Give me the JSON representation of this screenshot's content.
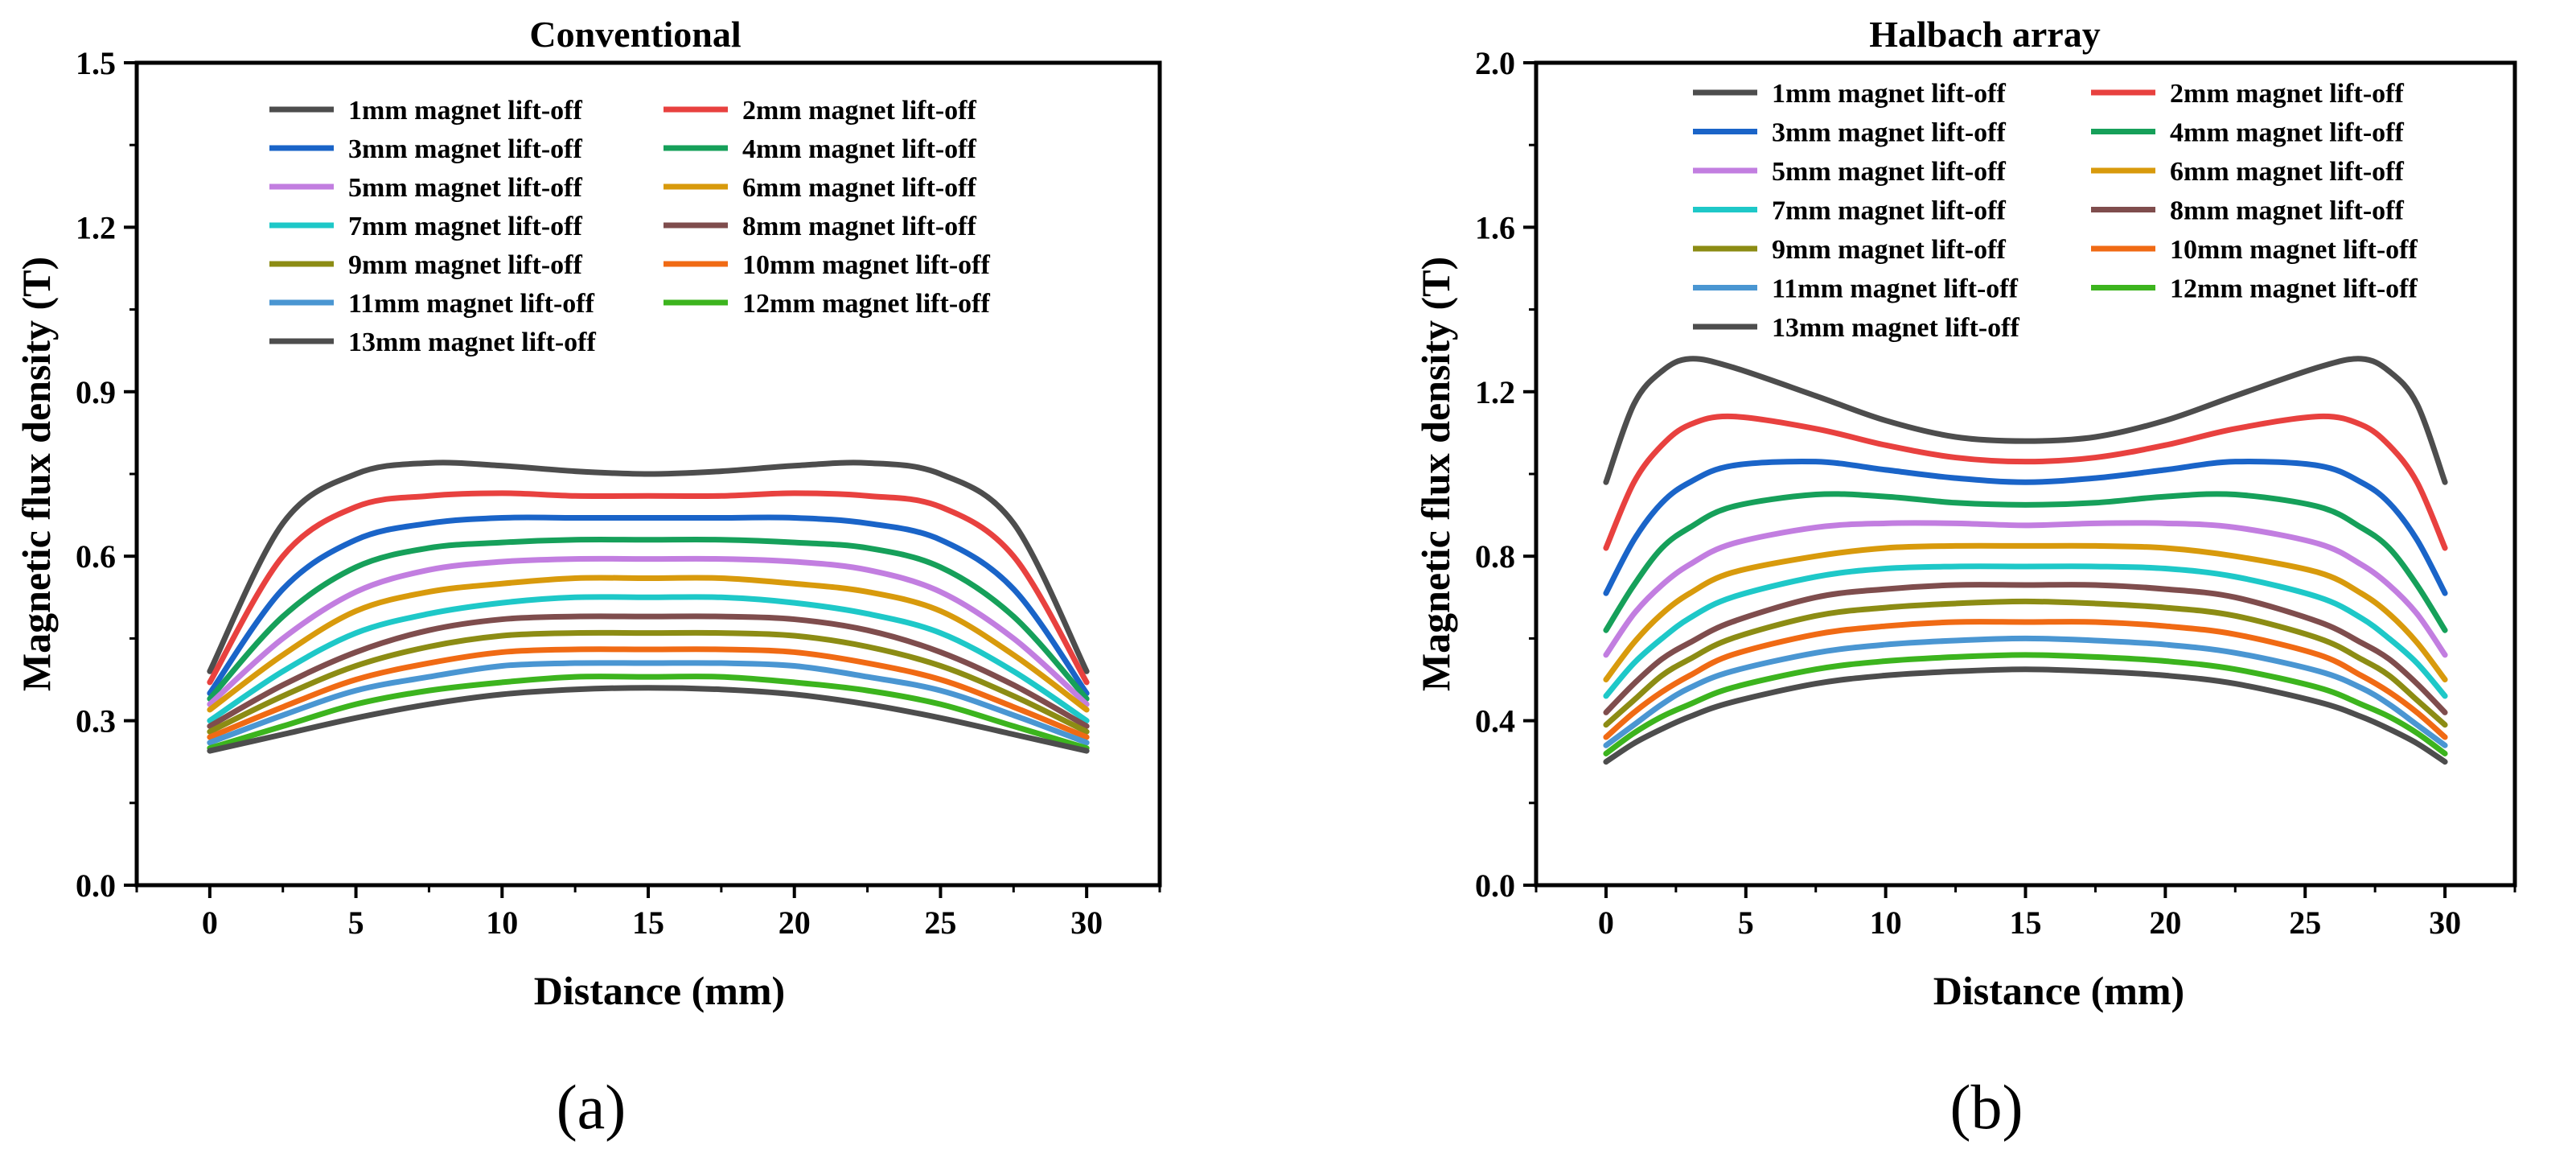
{
  "chart_data": [
    {
      "type": "line",
      "panel_label": "(a)",
      "title": "Conventional",
      "xlabel": "Distance (mm)",
      "ylabel": "Magnetic flux density (T)",
      "xlim": [
        -2.5,
        32.5
      ],
      "ylim": [
        0,
        1.5
      ],
      "xticks": [
        0,
        5,
        10,
        15,
        20,
        25,
        30
      ],
      "yticks": [
        0.0,
        0.3,
        0.6,
        0.9,
        1.2,
        1.5
      ],
      "ytick_labels": [
        "0.0",
        "0.3",
        "0.6",
        "0.9",
        "1.2",
        "1.5"
      ],
      "legend_position": "top",
      "x": [
        0,
        2.5,
        5,
        7.5,
        10,
        12.5,
        15,
        17.5,
        20,
        22.5,
        25,
        27.5,
        30
      ],
      "series": [
        {
          "name": "1mm magnet lift-off",
          "color": "#4d4d4d",
          "values": [
            0.39,
            0.66,
            0.75,
            0.77,
            0.765,
            0.755,
            0.75,
            0.755,
            0.765,
            0.77,
            0.75,
            0.66,
            0.39
          ]
        },
        {
          "name": "2mm magnet lift-off",
          "color": "#e8413f",
          "values": [
            0.37,
            0.6,
            0.69,
            0.71,
            0.715,
            0.71,
            0.71,
            0.71,
            0.715,
            0.71,
            0.69,
            0.6,
            0.37
          ]
        },
        {
          "name": "3mm magnet lift-off",
          "color": "#1a64c8",
          "values": [
            0.35,
            0.54,
            0.63,
            0.66,
            0.67,
            0.67,
            0.67,
            0.67,
            0.67,
            0.66,
            0.63,
            0.54,
            0.35
          ]
        },
        {
          "name": "4mm magnet lift-off",
          "color": "#16a05a",
          "values": [
            0.34,
            0.49,
            0.58,
            0.615,
            0.625,
            0.63,
            0.63,
            0.63,
            0.625,
            0.615,
            0.58,
            0.49,
            0.34
          ]
        },
        {
          "name": "5mm magnet lift-off",
          "color": "#c27ee0",
          "values": [
            0.33,
            0.45,
            0.535,
            0.575,
            0.59,
            0.595,
            0.595,
            0.595,
            0.59,
            0.575,
            0.535,
            0.45,
            0.33
          ]
        },
        {
          "name": "6mm magnet lift-off",
          "color": "#d89a0c",
          "values": [
            0.32,
            0.42,
            0.5,
            0.535,
            0.55,
            0.56,
            0.56,
            0.56,
            0.55,
            0.535,
            0.5,
            0.42,
            0.32
          ]
        },
        {
          "name": "7mm magnet lift-off",
          "color": "#1ec8c8",
          "values": [
            0.3,
            0.39,
            0.46,
            0.495,
            0.515,
            0.525,
            0.525,
            0.525,
            0.515,
            0.495,
            0.46,
            0.39,
            0.3
          ]
        },
        {
          "name": "8mm magnet lift-off",
          "color": "#7f4d4d",
          "values": [
            0.29,
            0.365,
            0.425,
            0.465,
            0.485,
            0.49,
            0.49,
            0.49,
            0.485,
            0.465,
            0.425,
            0.365,
            0.29
          ]
        },
        {
          "name": "9mm magnet lift-off",
          "color": "#8c8c14",
          "values": [
            0.28,
            0.345,
            0.4,
            0.435,
            0.455,
            0.46,
            0.46,
            0.46,
            0.455,
            0.435,
            0.4,
            0.345,
            0.28
          ]
        },
        {
          "name": "10mm magnet lift-off",
          "color": "#f06a14",
          "values": [
            0.27,
            0.325,
            0.375,
            0.405,
            0.425,
            0.43,
            0.43,
            0.43,
            0.425,
            0.405,
            0.375,
            0.325,
            0.27
          ]
        },
        {
          "name": "11mm magnet lift-off",
          "color": "#4a96d2",
          "values": [
            0.26,
            0.31,
            0.355,
            0.38,
            0.4,
            0.405,
            0.405,
            0.405,
            0.4,
            0.38,
            0.355,
            0.31,
            0.26
          ]
        },
        {
          "name": "12mm magnet lift-off",
          "color": "#3cb41e",
          "values": [
            0.25,
            0.29,
            0.33,
            0.355,
            0.37,
            0.38,
            0.38,
            0.38,
            0.37,
            0.355,
            0.33,
            0.29,
            0.25
          ]
        },
        {
          "name": "13mm magnet lift-off",
          "color": "#4d4d4d",
          "values": [
            0.245,
            0.275,
            0.305,
            0.33,
            0.348,
            0.357,
            0.36,
            0.357,
            0.348,
            0.33,
            0.305,
            0.275,
            0.245
          ]
        }
      ]
    },
    {
      "type": "line",
      "panel_label": "(b)",
      "title": "Halbach array",
      "xlabel": "Distance (mm)",
      "ylabel": "Magnetic flux density (T)",
      "xlim": [
        -2.5,
        32.5
      ],
      "ylim": [
        0,
        2.0
      ],
      "xticks": [
        0,
        5,
        10,
        15,
        20,
        25,
        30
      ],
      "yticks": [
        0.0,
        0.4,
        0.8,
        1.2,
        1.6,
        2.0
      ],
      "ytick_labels": [
        "0.0",
        "0.4",
        "0.8",
        "1.2",
        "1.6",
        "2.0"
      ],
      "legend_position": "top",
      "x": [
        0,
        1,
        2,
        3,
        4.5,
        7.5,
        10,
        12.5,
        15,
        17.5,
        20,
        22.5,
        25.5,
        27,
        28,
        29,
        30
      ],
      "series": [
        {
          "name": "1mm magnet lift-off",
          "color": "#4d4d4d",
          "values": [
            0.98,
            1.17,
            1.25,
            1.28,
            1.26,
            1.19,
            1.13,
            1.09,
            1.08,
            1.09,
            1.13,
            1.19,
            1.26,
            1.28,
            1.25,
            1.17,
            0.98
          ]
        },
        {
          "name": "2mm magnet lift-off",
          "color": "#e8413f",
          "values": [
            0.82,
            0.98,
            1.07,
            1.12,
            1.14,
            1.11,
            1.07,
            1.04,
            1.03,
            1.04,
            1.07,
            1.11,
            1.14,
            1.12,
            1.07,
            0.98,
            0.82
          ]
        },
        {
          "name": "3mm magnet lift-off",
          "color": "#1a64c8",
          "values": [
            0.71,
            0.84,
            0.93,
            0.98,
            1.02,
            1.03,
            1.01,
            0.99,
            0.98,
            0.99,
            1.01,
            1.03,
            1.02,
            0.98,
            0.93,
            0.84,
            0.71
          ]
        },
        {
          "name": "4mm magnet lift-off",
          "color": "#16a05a",
          "values": [
            0.62,
            0.73,
            0.82,
            0.87,
            0.92,
            0.95,
            0.945,
            0.93,
            0.925,
            0.93,
            0.945,
            0.95,
            0.92,
            0.87,
            0.82,
            0.73,
            0.62
          ]
        },
        {
          "name": "5mm magnet lift-off",
          "color": "#c27ee0",
          "values": [
            0.56,
            0.66,
            0.73,
            0.78,
            0.83,
            0.87,
            0.88,
            0.88,
            0.875,
            0.88,
            0.88,
            0.87,
            0.83,
            0.78,
            0.73,
            0.66,
            0.56
          ]
        },
        {
          "name": "6mm magnet lift-off",
          "color": "#d89a0c",
          "values": [
            0.5,
            0.59,
            0.66,
            0.71,
            0.76,
            0.8,
            0.82,
            0.825,
            0.825,
            0.825,
            0.82,
            0.8,
            0.76,
            0.71,
            0.66,
            0.59,
            0.5
          ]
        },
        {
          "name": "7mm magnet lift-off",
          "color": "#1ec8c8",
          "values": [
            0.46,
            0.54,
            0.6,
            0.65,
            0.7,
            0.75,
            0.77,
            0.775,
            0.775,
            0.775,
            0.77,
            0.75,
            0.7,
            0.65,
            0.6,
            0.54,
            0.46
          ]
        },
        {
          "name": "8mm magnet lift-off",
          "color": "#7f4d4d",
          "values": [
            0.42,
            0.49,
            0.55,
            0.59,
            0.64,
            0.7,
            0.72,
            0.73,
            0.73,
            0.73,
            0.72,
            0.7,
            0.64,
            0.59,
            0.55,
            0.49,
            0.42
          ]
        },
        {
          "name": "9mm magnet lift-off",
          "color": "#8c8c14",
          "values": [
            0.39,
            0.45,
            0.51,
            0.55,
            0.6,
            0.655,
            0.675,
            0.685,
            0.69,
            0.685,
            0.675,
            0.655,
            0.6,
            0.55,
            0.51,
            0.45,
            0.39
          ]
        },
        {
          "name": "10mm magnet lift-off",
          "color": "#f06a14",
          "values": [
            0.36,
            0.42,
            0.47,
            0.51,
            0.56,
            0.61,
            0.63,
            0.64,
            0.64,
            0.64,
            0.63,
            0.61,
            0.56,
            0.51,
            0.47,
            0.42,
            0.36
          ]
        },
        {
          "name": "11mm magnet lift-off",
          "color": "#4a96d2",
          "values": [
            0.34,
            0.39,
            0.44,
            0.48,
            0.52,
            0.565,
            0.585,
            0.595,
            0.6,
            0.595,
            0.585,
            0.565,
            0.52,
            0.48,
            0.44,
            0.39,
            0.34
          ]
        },
        {
          "name": "12mm magnet lift-off",
          "color": "#3cb41e",
          "values": [
            0.32,
            0.37,
            0.41,
            0.44,
            0.48,
            0.525,
            0.545,
            0.555,
            0.56,
            0.555,
            0.545,
            0.525,
            0.48,
            0.44,
            0.41,
            0.37,
            0.32
          ]
        },
        {
          "name": "13mm magnet lift-off",
          "color": "#4d4d4d",
          "values": [
            0.3,
            0.345,
            0.38,
            0.41,
            0.445,
            0.49,
            0.51,
            0.52,
            0.525,
            0.52,
            0.51,
            0.49,
            0.445,
            0.41,
            0.38,
            0.345,
            0.3
          ]
        }
      ]
    }
  ]
}
